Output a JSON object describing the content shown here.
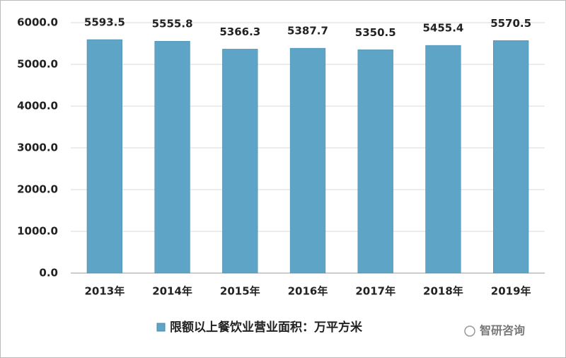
{
  "chart_data": {
    "type": "bar",
    "categories": [
      "2013年",
      "2014年",
      "2015年",
      "2016年",
      "2017年",
      "2018年",
      "2019年"
    ],
    "series": [
      {
        "name": "限额以上餐饮业营业面积：万平方米",
        "color": "#5ea4c6",
        "values": [
          5593.5,
          5555.8,
          5366.3,
          5387.7,
          5350.5,
          5455.4,
          5570.5
        ]
      }
    ],
    "ylim": [
      0,
      6000
    ],
    "yticks": [
      {
        "value": 0,
        "label": "0.0"
      },
      {
        "value": 1000,
        "label": "1000.0"
      },
      {
        "value": 2000,
        "label": "2000.0"
      },
      {
        "value": 3000,
        "label": "3000.0"
      },
      {
        "value": 4000,
        "label": "4000.0"
      },
      {
        "value": 5000,
        "label": "5000.0"
      },
      {
        "value": 6000,
        "label": "6000.0"
      }
    ],
    "grid": true,
    "legend": "bottom",
    "watermark": "智研咨询"
  }
}
